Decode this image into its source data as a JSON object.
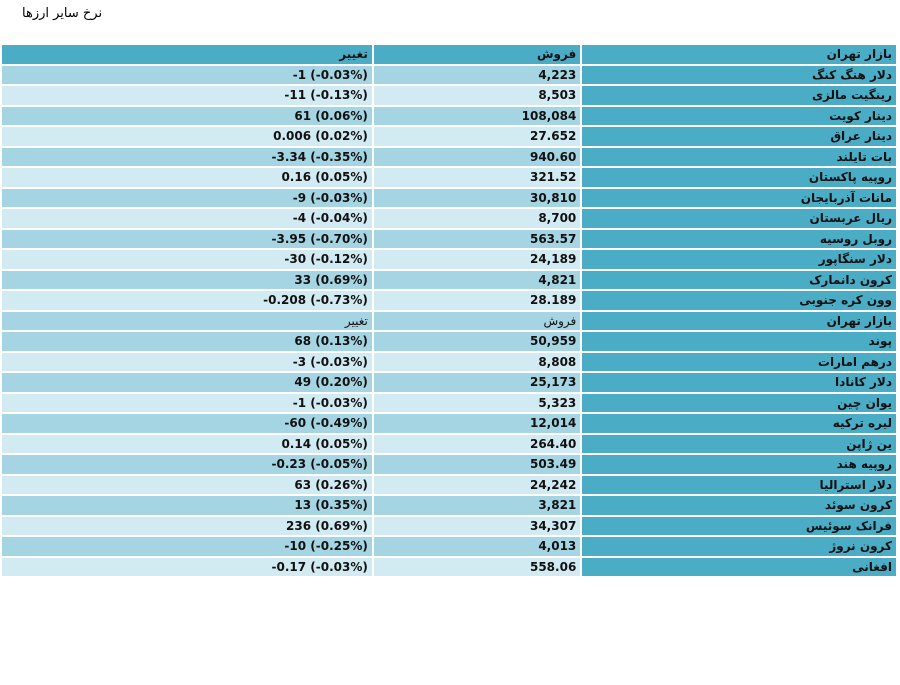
{
  "title": "نرخ سایر ارزها",
  "header": {
    "market": "بازار تهران",
    "sell": "فروش",
    "change": "تغییر"
  },
  "group1": [
    {
      "name": "دلار هنگ کنگ",
      "sell": "4,223",
      "change": "-1 (-0.03%)"
    },
    {
      "name": "رینگیت مالزی",
      "sell": "8,503",
      "change": "-11 (-0.13%)"
    },
    {
      "name": "دینار کویت",
      "sell": "108,084",
      "change": "61 (0.06%)"
    },
    {
      "name": "دینار عراق",
      "sell": "27.652",
      "change": "0.006 (0.02%)"
    },
    {
      "name": "بات تایلند",
      "sell": "940.60",
      "change": "-3.34 (-0.35%)"
    },
    {
      "name": "روپیه پاکستان",
      "sell": "321.52",
      "change": "0.16 (0.05%)"
    },
    {
      "name": "مانات آذربایجان",
      "sell": "30,810",
      "change": "-9 (-0.03%)"
    },
    {
      "name": "ریال عربستان",
      "sell": "8,700",
      "change": "-4 (-0.04%)"
    },
    {
      "name": "روبل روسیه",
      "sell": "563.57",
      "change": "-3.95 (-0.70%)"
    },
    {
      "name": "دلار سنگاپور",
      "sell": "24,189",
      "change": "-30 (-0.12%)"
    },
    {
      "name": "کرون دانمارک",
      "sell": "4,821",
      "change": "33 (0.69%)"
    },
    {
      "name": "وون کره جنوبی",
      "sell": "28.189",
      "change": "-0.208 (-0.73%)"
    }
  ],
  "subheader": {
    "market": "بازار تهران",
    "sell": "فروش",
    "change": "تغییر"
  },
  "group2": [
    {
      "name": "پوند",
      "sell": "50,959",
      "change": "68 (0.13%)"
    },
    {
      "name": "درهم امارات",
      "sell": "8,808",
      "change": "-3 (-0.03%)"
    },
    {
      "name": "دلار کانادا",
      "sell": "25,173",
      "change": "49 (0.20%)"
    },
    {
      "name": "یوان چین",
      "sell": "5,323",
      "change": "-1 (-0.03%)"
    },
    {
      "name": "لیره ترکیه",
      "sell": "12,014",
      "change": "-60 (-0.49%)"
    },
    {
      "name": "ین ژاپن",
      "sell": "264.40",
      "change": "0.14 (0.05%)"
    },
    {
      "name": "روپیه هند",
      "sell": "503.49",
      "change": "-0.23 (-0.05%)"
    },
    {
      "name": "دلار استرالیا",
      "sell": "24,242",
      "change": "63 (0.26%)"
    },
    {
      "name": "کرون سوئد",
      "sell": "3,821",
      "change": "13 (0.35%)"
    },
    {
      "name": "فرانک سوئیس",
      "sell": "34,307",
      "change": "236 (0.69%)"
    },
    {
      "name": "کرون نروژ",
      "sell": "4,013",
      "change": "-10 (-0.25%)"
    },
    {
      "name": "افغانی",
      "sell": "558.06",
      "change": "-0.17 (-0.03%)"
    }
  ]
}
